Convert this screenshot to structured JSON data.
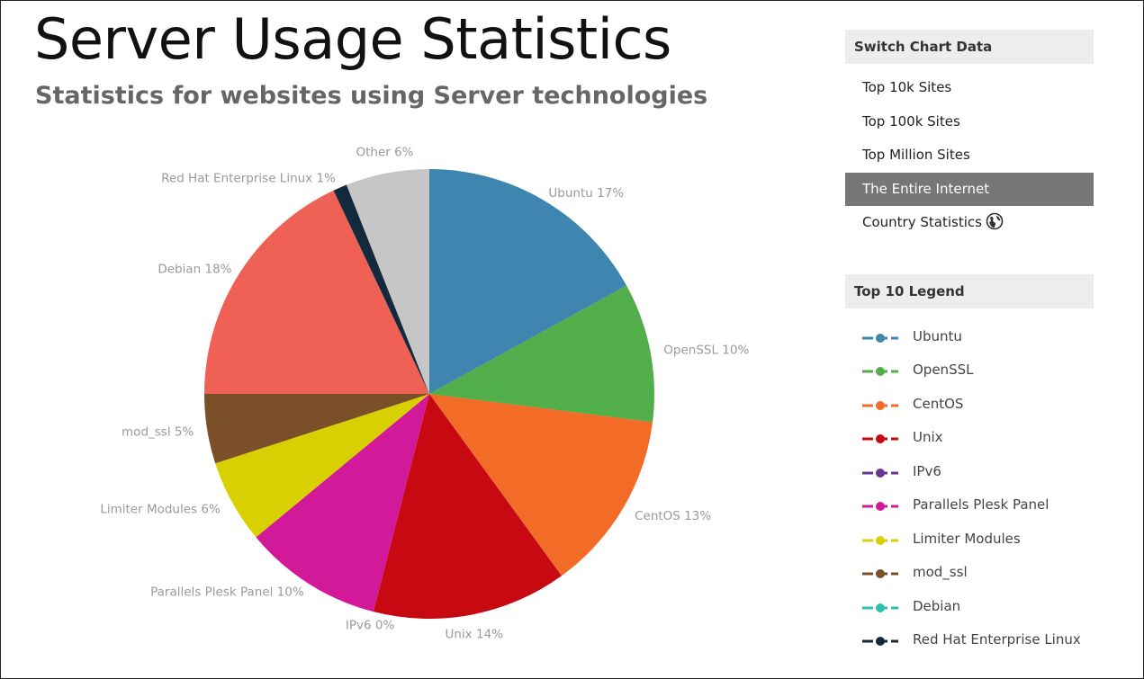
{
  "header": {
    "title": "Server Usage Statistics",
    "subtitle": "Statistics for websites using Server technologies"
  },
  "switch_panel": {
    "title": "Switch Chart Data",
    "items": [
      {
        "label": "Top 10k Sites",
        "active": false
      },
      {
        "label": "Top 100k Sites",
        "active": false
      },
      {
        "label": "Top Million Sites",
        "active": false
      },
      {
        "label": "The Entire Internet",
        "active": true
      },
      {
        "label": "Country Statistics",
        "active": false,
        "icon": "globe-icon"
      }
    ]
  },
  "legend_panel": {
    "title": "Top 10 Legend",
    "items": [
      {
        "label": "Ubuntu",
        "color": "#3e86b0"
      },
      {
        "label": "OpenSSL",
        "color": "#52ad4b"
      },
      {
        "label": "CentOS",
        "color": "#f26b27"
      },
      {
        "label": "Unix",
        "color": "#c70a11"
      },
      {
        "label": "IPv6",
        "color": "#6d3391"
      },
      {
        "label": "Parallels Plesk Panel",
        "color": "#d2199a"
      },
      {
        "label": "Limiter Modules",
        "color": "#d8d000"
      },
      {
        "label": "mod_ssl",
        "color": "#7b4f28"
      },
      {
        "label": "Debian",
        "color": "#2ebfb3"
      },
      {
        "label": "Red Hat Enterprise Linux",
        "color": "#13293d"
      }
    ]
  },
  "chart_data": {
    "type": "pie",
    "slices": [
      {
        "name": "Ubuntu",
        "value": 17,
        "label": "Ubuntu 17%",
        "color": "#3e86b0"
      },
      {
        "name": "OpenSSL",
        "value": 10,
        "label": "OpenSSL 10%",
        "color": "#52ad4b"
      },
      {
        "name": "CentOS",
        "value": 13,
        "label": "CentOS 13%",
        "color": "#f26b27"
      },
      {
        "name": "Unix",
        "value": 14,
        "label": "Unix 14%",
        "color": "#c70a11"
      },
      {
        "name": "IPv6",
        "value": 0,
        "label": "IPv6 0%",
        "color": "#6d3391"
      },
      {
        "name": "Parallels Plesk Panel",
        "value": 10,
        "label": "Parallels Plesk Panel 10%",
        "color": "#d2199a"
      },
      {
        "name": "Limiter Modules",
        "value": 6,
        "label": "Limiter Modules 6%",
        "color": "#d8d000"
      },
      {
        "name": "mod_ssl",
        "value": 5,
        "label": "mod_ssl 5%",
        "color": "#7b4f28"
      },
      {
        "name": "Debian",
        "value": 18,
        "label": "Debian 18%",
        "color": "#f06155"
      },
      {
        "name": "Red Hat Enterprise Linux",
        "value": 1,
        "label": "Red Hat Enterprise Linux 1%",
        "color": "#13293d"
      },
      {
        "name": "Other",
        "value": 6,
        "label": "Other 6%",
        "color": "#c6c6c6"
      }
    ]
  }
}
